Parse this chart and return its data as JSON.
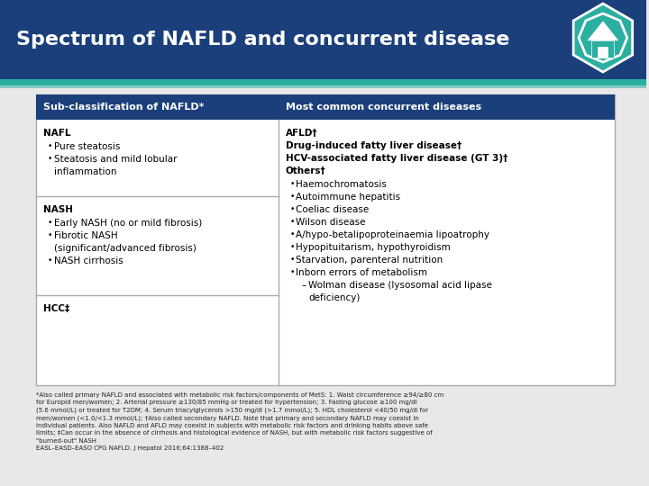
{
  "title": "Spectrum of NAFLD and concurrent disease",
  "title_bg": "#1b3f7a",
  "title_color": "#ffffff",
  "accent_color": "#2aafa0",
  "stripe_color": "#2aafa0",
  "header_bg": "#1b3f7a",
  "header_color": "#ffffff",
  "table_border": "#aaaaaa",
  "col1_header": "Sub-classification of NAFLD*",
  "col2_header": "Most common concurrent diseases",
  "background": "#e8e8e8",
  "footnote_text": "*Also called primary NAFLD and associated with metabolic risk factors/components of MetS: 1. Waist circumference ≥94/≥80 cm\nfor Europid men/women; 2. Arterial pressure ≥130/85 mmHg or treated for hypertension; 3. Fasting glucose ≥100 mg/dl\n(5.6 mmol/L) or treated for T2DM; 4. Serum triacylglycerols >150 mg/dl (>1.7 mmol/L); 5. HDL cholesterol <40/50 mg/dl for\nmen/women (<1.0/<1.3 mmol/L); †Also called secondary NAFLD. Note that primary and secondary NAFLD may coexist in\nindividual patients. Also NAFLD and AFLD may coexist in subjects with metabolic risk factors and drinking habits above safe\nlimits; ‡Can occur in the absence of cirrhosis and histological evidence of NASH, but with metabolic risk factors suggestive of\n\"burned-out\" NASH\nEASL–EASD–EASO CPG NAFLD. J Hepatol 2016;64:1388–402"
}
